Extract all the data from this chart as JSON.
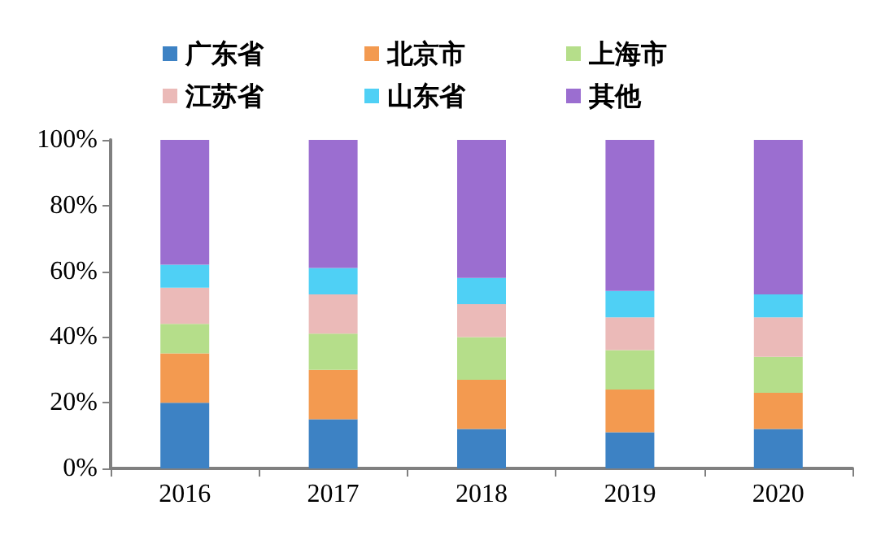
{
  "chart_data": {
    "type": "bar",
    "stacked": true,
    "categories": [
      "2016",
      "2017",
      "2018",
      "2019",
      "2020"
    ],
    "series": [
      {
        "name": "广东省",
        "color": "#3d82c4",
        "values": [
          20,
          15,
          12,
          11,
          12
        ]
      },
      {
        "name": "北京市",
        "color": "#f39a50",
        "values": [
          15,
          15,
          15,
          13,
          11
        ]
      },
      {
        "name": "上海市",
        "color": "#b5de8a",
        "values": [
          9,
          11,
          13,
          12,
          11
        ]
      },
      {
        "name": "江苏省",
        "color": "#ebbab8",
        "values": [
          11,
          12,
          10,
          10,
          12
        ]
      },
      {
        "name": "山东省",
        "color": "#4fd0f5",
        "values": [
          7,
          8,
          8,
          8,
          7
        ]
      },
      {
        "name": "其他",
        "color": "#9b6ed0",
        "values": [
          38,
          39,
          42,
          46,
          47
        ]
      }
    ],
    "ylim": [
      0,
      100
    ],
    "yticks": [
      {
        "value": 0,
        "label": "0%"
      },
      {
        "value": 20,
        "label": "20%"
      },
      {
        "value": 40,
        "label": "40%"
      },
      {
        "value": 60,
        "label": "60%"
      },
      {
        "value": 80,
        "label": "80%"
      },
      {
        "value": 100,
        "label": "100%"
      }
    ],
    "grid": false,
    "legend": "top"
  }
}
